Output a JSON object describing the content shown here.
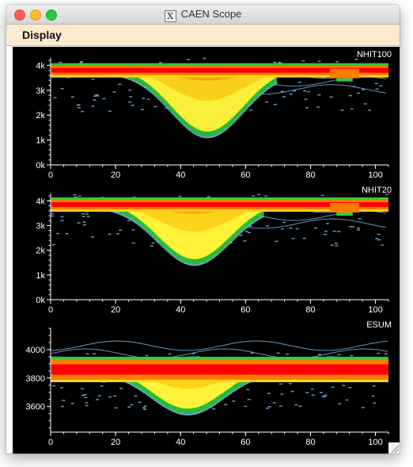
{
  "window": {
    "title": "CAEN Scope"
  },
  "menu": {
    "display_label": "Display"
  },
  "colors": {
    "background": "#000000",
    "axis": "#ffffff",
    "scatter": "#7db9ea",
    "hot": "#ff0000",
    "mid": "#ffd000",
    "cool": "#2ccf3c"
  },
  "chart_data": [
    {
      "type": "heatmap",
      "title": "NHIT100",
      "xlim": [
        0,
        104
      ],
      "ylim": [
        0,
        4300
      ],
      "xticks": [
        "0",
        "20",
        "40",
        "60",
        "80",
        "100"
      ],
      "yticks": [
        "0k",
        "1k",
        "2k",
        "3k",
        "4k"
      ],
      "baseline_y": 3800,
      "dip_center_x": 48,
      "dip_min_y": 1200
    },
    {
      "type": "heatmap",
      "title": "NHIT20",
      "xlim": [
        0,
        104
      ],
      "ylim": [
        0,
        4300
      ],
      "xticks": [
        "0",
        "20",
        "40",
        "60",
        "80",
        "100"
      ],
      "yticks": [
        "0k",
        "1k",
        "2k",
        "3k",
        "4k"
      ],
      "baseline_y": 3850,
      "dip_center_x": 44,
      "dip_min_y": 1500
    },
    {
      "type": "heatmap",
      "title": "ESUM",
      "xlim": [
        0,
        104
      ],
      "ylim": [
        3420,
        4150
      ],
      "xticks": [
        "0",
        "20",
        "40",
        "60",
        "80",
        "100"
      ],
      "yticks": [
        "3600",
        "3800",
        "4000"
      ],
      "baseline_y": 3860,
      "dip_center_x": 42,
      "dip_min_y": 3560
    }
  ]
}
